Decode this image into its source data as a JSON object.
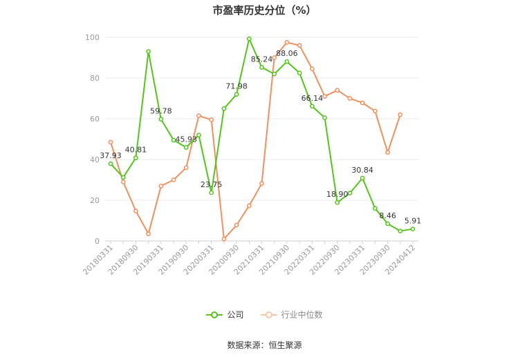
{
  "chart_data": {
    "type": "line",
    "title": "市盈率历史分位（%）",
    "ylim": [
      0,
      100
    ],
    "yticks": [
      0,
      20,
      40,
      60,
      80,
      100
    ],
    "x": [
      "20180331",
      "20180630",
      "20180930",
      "20181231",
      "20190331",
      "20190630",
      "20190930",
      "20191231",
      "20200331",
      "20200630",
      "20200930",
      "20201231",
      "20210331",
      "20210630",
      "20210930",
      "20211231",
      "20220331",
      "20220630",
      "20220930",
      "20221231",
      "20230331",
      "20230630",
      "20230930",
      "20231231",
      "20240412"
    ],
    "xtick_labels": [
      "20180331",
      "20180930",
      "20190331",
      "20190930",
      "20200331",
      "20200930",
      "20210331",
      "20210930",
      "20220331",
      "20220930",
      "20230331",
      "20230930",
      "20240412"
    ],
    "grid": true,
    "legend_position": "bottom",
    "series": [
      {
        "name": "公司",
        "color": "#52c41a",
        "values": [
          37.93,
          31.2,
          40.81,
          93.0,
          59.78,
          49.5,
          45.93,
          52.0,
          23.75,
          65.0,
          71.98,
          99.3,
          85.24,
          82.0,
          88.06,
          82.5,
          66.14,
          60.5,
          18.9,
          23.5,
          30.84,
          16.0,
          8.46,
          4.9,
          5.91
        ],
        "labels": {
          "0": "37.93",
          "2": "40.81",
          "4": "59.78",
          "6": "45.93",
          "8": "23.75",
          "10": "71.98",
          "12": "85.24",
          "14": "88.06",
          "16": "66.14",
          "18": "18.90",
          "20": "30.84",
          "22": "8.46",
          "24": "5.91"
        }
      },
      {
        "name": "行业中位数",
        "color": "#f28e5c",
        "values": [
          48.5,
          29.0,
          14.7,
          3.5,
          27.0,
          30.0,
          36.0,
          61.5,
          59.5,
          1.0,
          7.8,
          17.3,
          28.2,
          90.0,
          97.5,
          96.0,
          84.5,
          71.0,
          74.0,
          70.0,
          67.8,
          63.8,
          43.5,
          62.0,
          null
        ]
      }
    ]
  },
  "source": "数据来源：恒生聚源"
}
